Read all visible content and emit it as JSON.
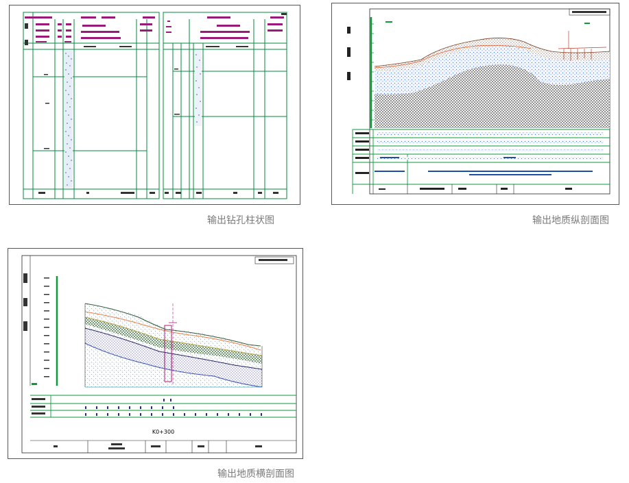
{
  "captions": {
    "borehole": "输出钻孔柱状图",
    "longitudinal": "输出地质纵剖面图",
    "cross": "输出地质横剖面图"
  },
  "cross_section": {
    "station": "K0+300"
  },
  "colors": {
    "grid_green": "#008a3c",
    "label_magenta": "#9a1a7a",
    "hatch_blue": "#3a6fd8",
    "caption_gray": "#7a7a7a"
  }
}
